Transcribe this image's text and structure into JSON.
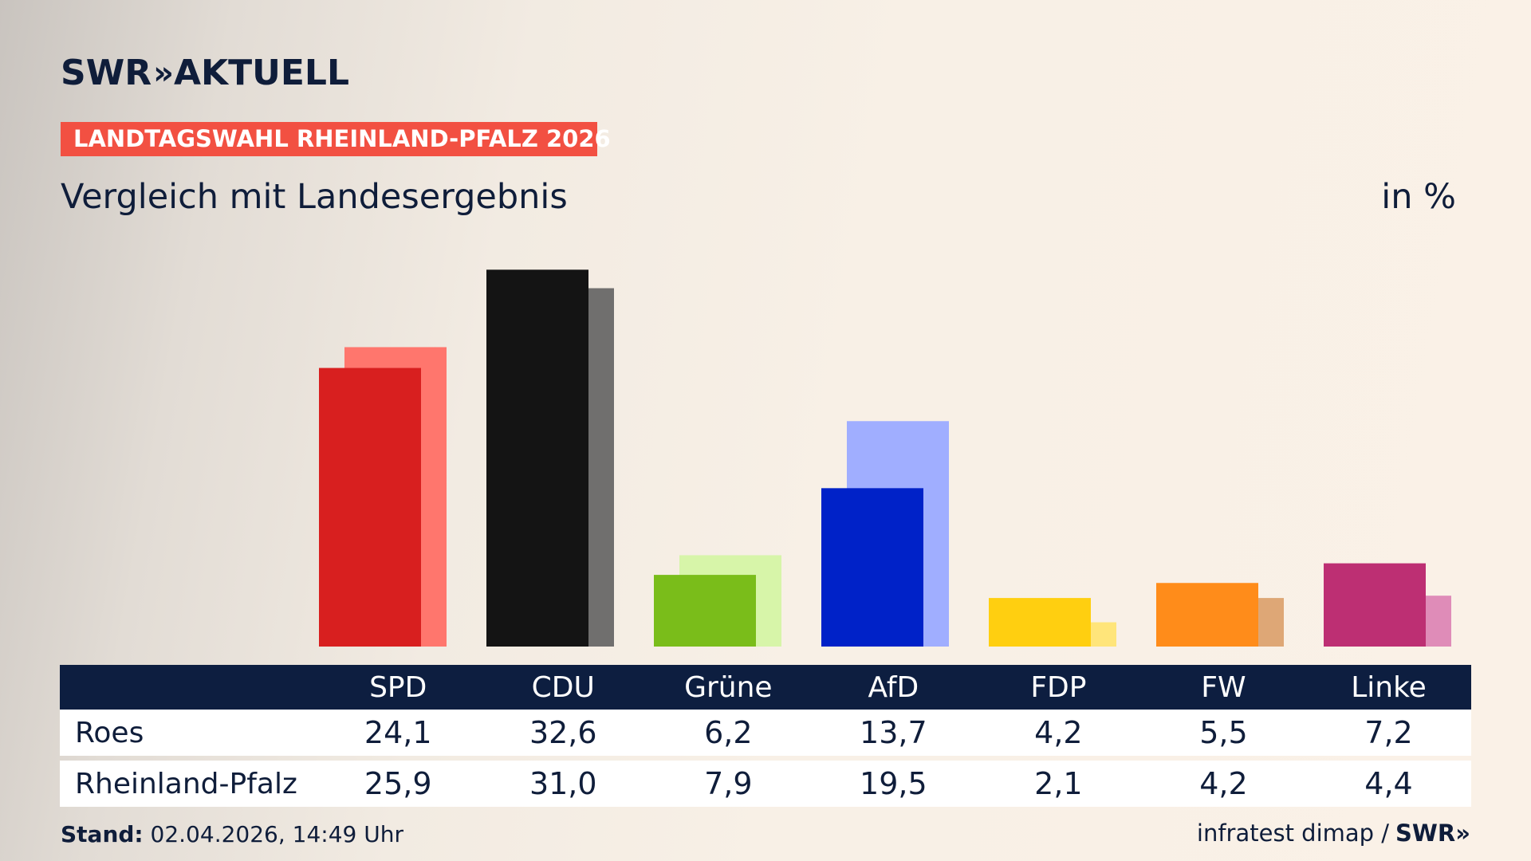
{
  "brand": {
    "logo_left": "SWR",
    "logo_chevrons": "»",
    "logo_right": "AKTUELL"
  },
  "kicker": "LANDTAGSWAHL RHEINLAND-PFALZ 2026",
  "subtitle": "Vergleich mit Landesergebnis",
  "unit": "in %",
  "chart_data": {
    "type": "bar",
    "categories": [
      "SPD",
      "CDU",
      "Grüne",
      "AfD",
      "FDP",
      "FW",
      "Linke"
    ],
    "series": [
      {
        "name": "Roes",
        "values": [
          24.1,
          32.6,
          6.2,
          13.7,
          4.2,
          5.5,
          7.2
        ]
      },
      {
        "name": "Rheinland-Pfalz",
        "values": [
          25.9,
          31.0,
          7.9,
          19.5,
          2.1,
          4.2,
          4.4
        ]
      }
    ],
    "colors_primary": [
      "#d81f1f",
      "#141414",
      "#7abd1a",
      "#0022c8",
      "#ffcf10",
      "#ff8c1a",
      "#bd2f73"
    ],
    "colors_secondary": [
      "#ff766d",
      "#706f6e",
      "#d7f5a9",
      "#a0aeff",
      "#ffe57a",
      "#dea776",
      "#df8cb8"
    ],
    "ylim": [
      0,
      35
    ],
    "grid": false,
    "legend": "table-below"
  },
  "table": {
    "header_label": "",
    "rows": [
      {
        "label": "Roes",
        "values": [
          "24,1",
          "32,6",
          "6,2",
          "13,7",
          "4,2",
          "5,5",
          "7,2"
        ]
      },
      {
        "label": "Rheinland-Pfalz",
        "values": [
          "25,9",
          "31,0",
          "7,9",
          "19,5",
          "2,1",
          "4,2",
          "4,4"
        ]
      }
    ]
  },
  "footer": {
    "stand_label": "Stand:",
    "stand_value": "02.04.2026, 14:49 Uhr",
    "source": "infratest dimap /",
    "source_brand": "SWR»"
  }
}
